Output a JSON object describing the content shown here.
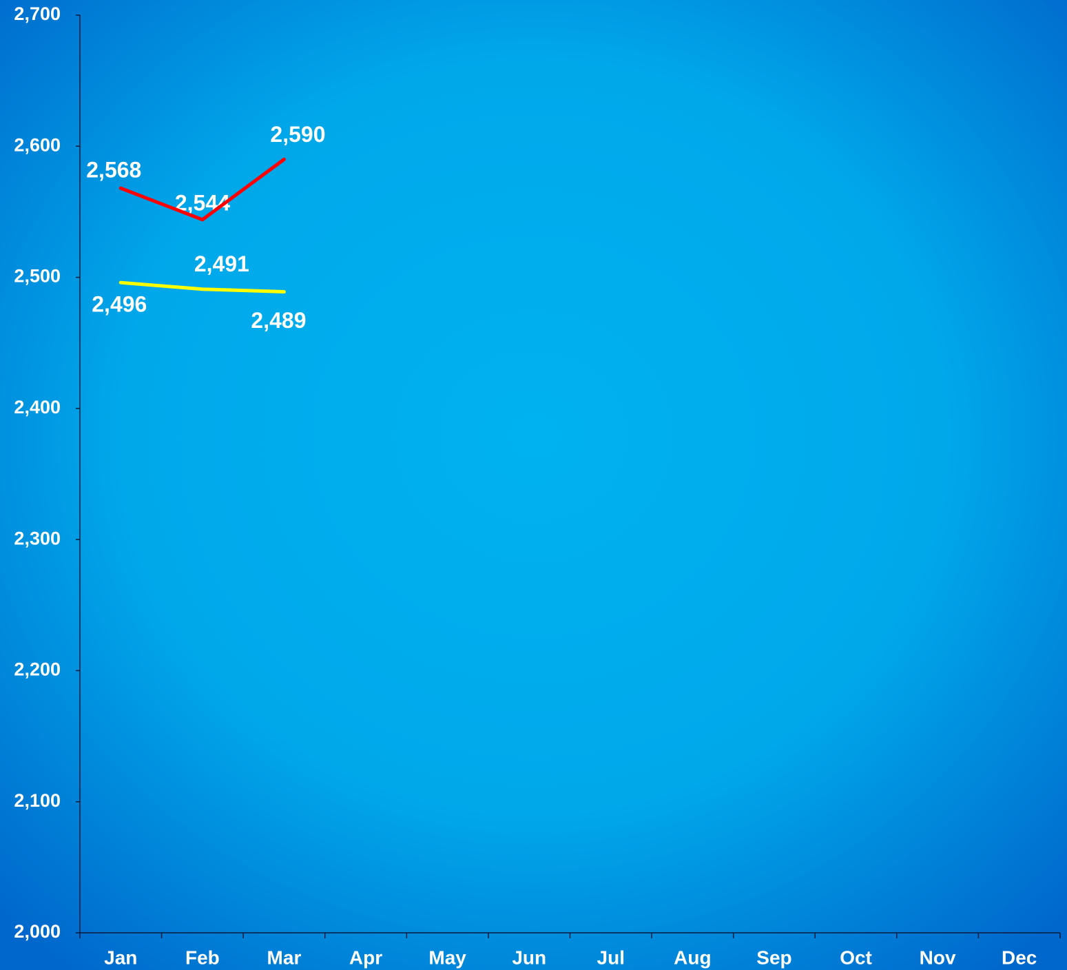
{
  "chart_data": {
    "type": "line",
    "categories": [
      "Jan",
      "Feb",
      "Mar",
      "Apr",
      "May",
      "Jun",
      "Jul",
      "Aug",
      "Sep",
      "Oct",
      "Nov",
      "Dec"
    ],
    "series": [
      {
        "color": "#ff0000",
        "values": [
          2568,
          2544,
          2590,
          null,
          null,
          null,
          null,
          null,
          null,
          null,
          null,
          null
        ],
        "value_labels": [
          "2,568",
          "2,544",
          "2,590",
          null,
          null,
          null,
          null,
          null,
          null,
          null,
          null,
          null
        ]
      },
      {
        "color": "#ffff00",
        "values": [
          2496,
          2491,
          2489,
          null,
          null,
          null,
          null,
          null,
          null,
          null,
          null,
          null
        ],
        "value_labels": [
          "2,496",
          "2,491",
          "2,489",
          null,
          null,
          null,
          null,
          null,
          null,
          null,
          null,
          null
        ]
      }
    ],
    "ylim": [
      2000,
      2700
    ],
    "yticks": [
      {
        "value": 2000,
        "label": "2,000"
      },
      {
        "value": 2100,
        "label": "2,100"
      },
      {
        "value": 2200,
        "label": "2,200"
      },
      {
        "value": 2300,
        "label": "2,300"
      },
      {
        "value": 2400,
        "label": "2,400"
      },
      {
        "value": 2500,
        "label": "2,500"
      },
      {
        "value": 2600,
        "label": "2,600"
      },
      {
        "value": 2700,
        "label": "2,700"
      }
    ],
    "grid": false
  }
}
